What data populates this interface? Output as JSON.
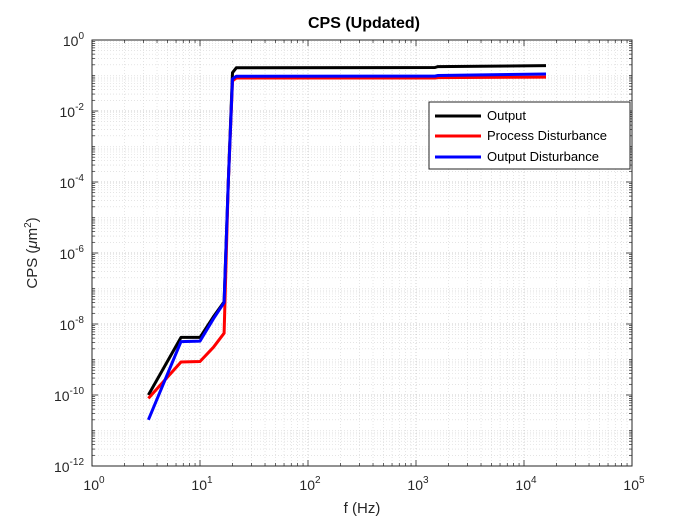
{
  "chart_data": {
    "type": "line",
    "title": "CPS (Updated)",
    "xlabel": "f (Hz)",
    "ylabel": {
      "prefix": "CPS (",
      "mu": "μ",
      "unit": "m",
      "exp": "2",
      "suffix": ")"
    },
    "xscale": "log",
    "yscale": "log",
    "xlim": [
      1,
      100000
    ],
    "ylim": [
      1e-12,
      1
    ],
    "grid": true,
    "minor_grid": true,
    "legend_position": "top-right",
    "x_ticks": [
      {
        "value": 1,
        "base": "10",
        "exp": "0"
      },
      {
        "value": 10,
        "base": "10",
        "exp": "1"
      },
      {
        "value": 100,
        "base": "10",
        "exp": "2"
      },
      {
        "value": 1000,
        "base": "10",
        "exp": "3"
      },
      {
        "value": 10000,
        "base": "10",
        "exp": "4"
      },
      {
        "value": 100000,
        "base": "10",
        "exp": "5"
      }
    ],
    "y_ticks": [
      {
        "value": 1e-12,
        "base": "10",
        "exp": "-12"
      },
      {
        "value": 1e-10,
        "base": "10",
        "exp": "-10"
      },
      {
        "value": 1e-08,
        "base": "10",
        "exp": "-8"
      },
      {
        "value": 1e-06,
        "base": "10",
        "exp": "-6"
      },
      {
        "value": 0.0001,
        "base": "10",
        "exp": "-4"
      },
      {
        "value": 0.01,
        "base": "10",
        "exp": "-2"
      },
      {
        "value": 1,
        "base": "10",
        "exp": "0"
      }
    ],
    "series": [
      {
        "name": "Output",
        "color": "#000000",
        "x": [
          3.33,
          6.67,
          10,
          13.3,
          16.7,
          18.3,
          20,
          21.7,
          1500,
          1600,
          16000
        ],
        "y": [
          1e-10,
          4.2e-09,
          4.2e-09,
          1.6e-08,
          4.2e-08,
          0.0001,
          0.12,
          0.165,
          0.168,
          0.178,
          0.19
        ]
      },
      {
        "name": "Process Disturbance",
        "color": "#ff0000",
        "x": [
          3.33,
          6.67,
          10,
          13.3,
          16.7,
          18.3,
          20,
          21.7,
          1500,
          1600,
          16000
        ],
        "y": [
          8e-11,
          8.5e-10,
          8.8e-10,
          2.2e-09,
          5.5e-09,
          0.0001,
          0.07,
          0.085,
          0.085,
          0.087,
          0.09
        ]
      },
      {
        "name": "Output Disturbance",
        "color": "#0000ff",
        "x": [
          3.33,
          6.67,
          10,
          13.3,
          16.7,
          18.3,
          20,
          21.7,
          1500,
          1600,
          16000
        ],
        "y": [
          2e-11,
          3.2e-09,
          3.3e-09,
          1.4e-08,
          4e-08,
          0.0001,
          0.08,
          0.095,
          0.096,
          0.1,
          0.11
        ]
      }
    ]
  }
}
